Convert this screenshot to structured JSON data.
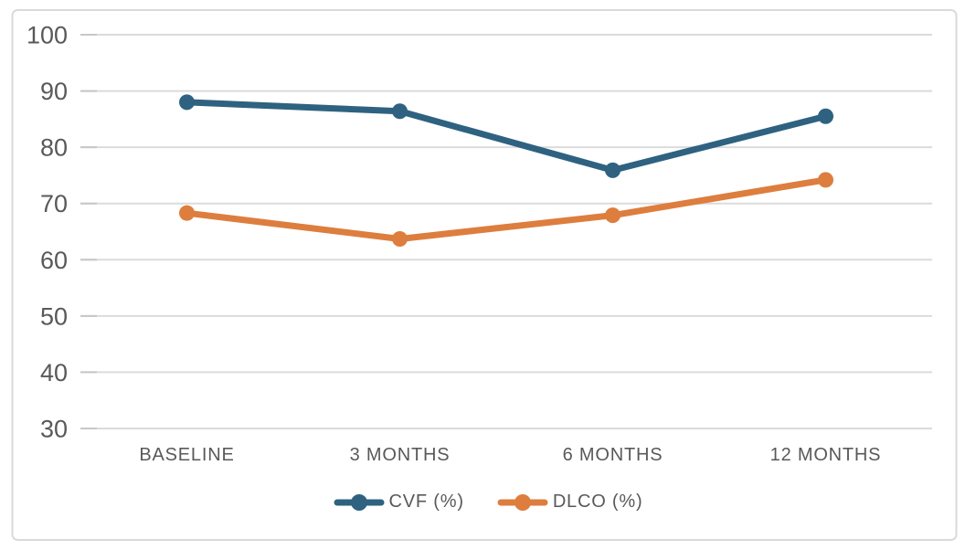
{
  "chart_data": {
    "type": "line",
    "title": "",
    "xlabel": "",
    "ylabel": "",
    "categories": [
      "BASELINE",
      "3 MONTHS",
      "6 MONTHS",
      "12 MONTHS"
    ],
    "series": [
      {
        "name": "CVF (%)",
        "color": "#2E6280",
        "values": [
          88.0,
          86.4,
          75.9,
          85.5
        ]
      },
      {
        "name": "DLCO (%)",
        "color": "#DD7E3E",
        "values": [
          68.3,
          63.7,
          67.9,
          74.2
        ]
      }
    ],
    "ylim": [
      30,
      100
    ],
    "yticks": [
      100,
      90,
      80,
      70,
      60,
      50,
      40,
      30
    ],
    "grid": true,
    "legend_position": "bottom",
    "colors": {
      "background": "#FFFFFF",
      "frame_border": "#DADADA",
      "gridline": "#DBDBDB",
      "tick": "#C7C7C7",
      "axis_text": "#595959"
    }
  }
}
